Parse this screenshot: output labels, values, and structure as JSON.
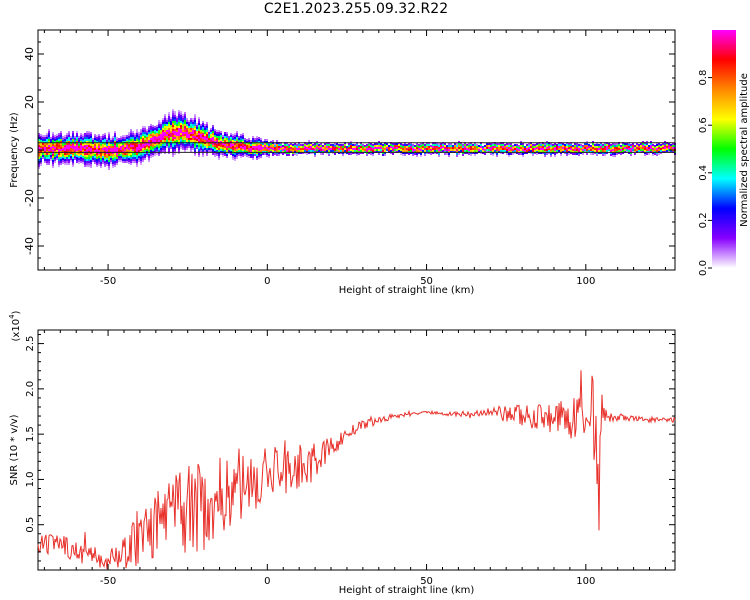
{
  "title": "C2E1.2023.255.09.32.R22",
  "chart_data": [
    {
      "type": "heatmap",
      "xlabel": "Height of straight line (km)",
      "ylabel": "Frequency (Hz)",
      "xlim": [
        -72,
        128
      ],
      "ylim": [
        -50,
        50
      ],
      "x_ticks": [
        -50,
        0,
        50,
        100
      ],
      "y_ticks": [
        -40,
        -20,
        0,
        20,
        40
      ],
      "colorbar": {
        "label": "Normalized spectral amplitude",
        "range": [
          0,
          1
        ],
        "ticks": [
          0.0,
          0.2,
          0.4,
          0.6,
          0.8
        ],
        "colormap": [
          "#ffffff",
          "#8800ff",
          "#0000ff",
          "#00ffff",
          "#00ff00",
          "#ffff00",
          "#ff8800",
          "#ff0000",
          "#ff00ff"
        ]
      },
      "ridge": {
        "x": [
          -72,
          -60,
          -50,
          -40,
          -35,
          -30,
          -27,
          -20,
          -15,
          -10,
          -5,
          0,
          10,
          100,
          128
        ],
        "center_hz": [
          1,
          1,
          0,
          2,
          5,
          8,
          8,
          5,
          3,
          2,
          1,
          1,
          1,
          1,
          1
        ],
        "halfwidth_hz": [
          4,
          4,
          4,
          4,
          4,
          5,
          5,
          4,
          3,
          3,
          3,
          2,
          1.5,
          1.5,
          1.5
        ]
      },
      "background_lines_hz": [
        3,
        -1
      ]
    },
    {
      "type": "line",
      "xlabel": "Height of straight line (km)",
      "ylabel": "SNR (10 * v/v)",
      "y_multiplier": "(x10",
      "y_multiplier_exp": "4",
      "y_multiplier_close": ")",
      "xlim": [
        -72,
        128
      ],
      "ylim": [
        0,
        2.65
      ],
      "x_ticks": [
        -50,
        0,
        50,
        100
      ],
      "y_ticks": [
        0.5,
        1.0,
        1.5,
        2.0,
        2.5
      ],
      "series": [
        {
          "color": "#e8302a",
          "x": [
            -72,
            -65,
            -60,
            -55,
            -50,
            -45,
            -40,
            -35,
            -30,
            -25,
            -20,
            -15,
            -10,
            -5,
            0,
            5,
            10,
            15,
            20,
            25,
            30,
            35,
            40,
            45,
            50,
            55,
            60,
            65,
            70,
            75,
            80,
            85,
            90,
            95,
            100,
            102,
            103,
            104,
            105,
            106,
            110,
            115,
            120,
            128
          ],
          "y": [
            0.25,
            0.3,
            0.2,
            0.15,
            0.12,
            0.2,
            0.35,
            0.5,
            0.6,
            0.65,
            0.7,
            0.8,
            0.9,
            0.95,
            1.05,
            1.15,
            1.1,
            1.2,
            1.35,
            1.5,
            1.6,
            1.65,
            1.7,
            1.72,
            1.74,
            1.73,
            1.72,
            1.72,
            1.73,
            1.72,
            1.71,
            1.7,
            1.68,
            1.66,
            1.7,
            1.9,
            1.5,
            0.6,
            1.8,
            1.7,
            1.68,
            1.67,
            1.66,
            1.65
          ],
          "noise": [
            0.12,
            0.12,
            0.12,
            0.12,
            0.12,
            0.2,
            0.3,
            0.4,
            0.45,
            0.5,
            0.5,
            0.45,
            0.4,
            0.35,
            0.3,
            0.3,
            0.28,
            0.2,
            0.12,
            0.08,
            0.05,
            0.04,
            0.03,
            0.02,
            0.02,
            0.02,
            0.03,
            0.04,
            0.06,
            0.1,
            0.14,
            0.16,
            0.18,
            0.22,
            0.3,
            0.5,
            0.5,
            0.5,
            0.3,
            0.08,
            0.04,
            0.03,
            0.03,
            0.03
          ]
        }
      ]
    }
  ]
}
